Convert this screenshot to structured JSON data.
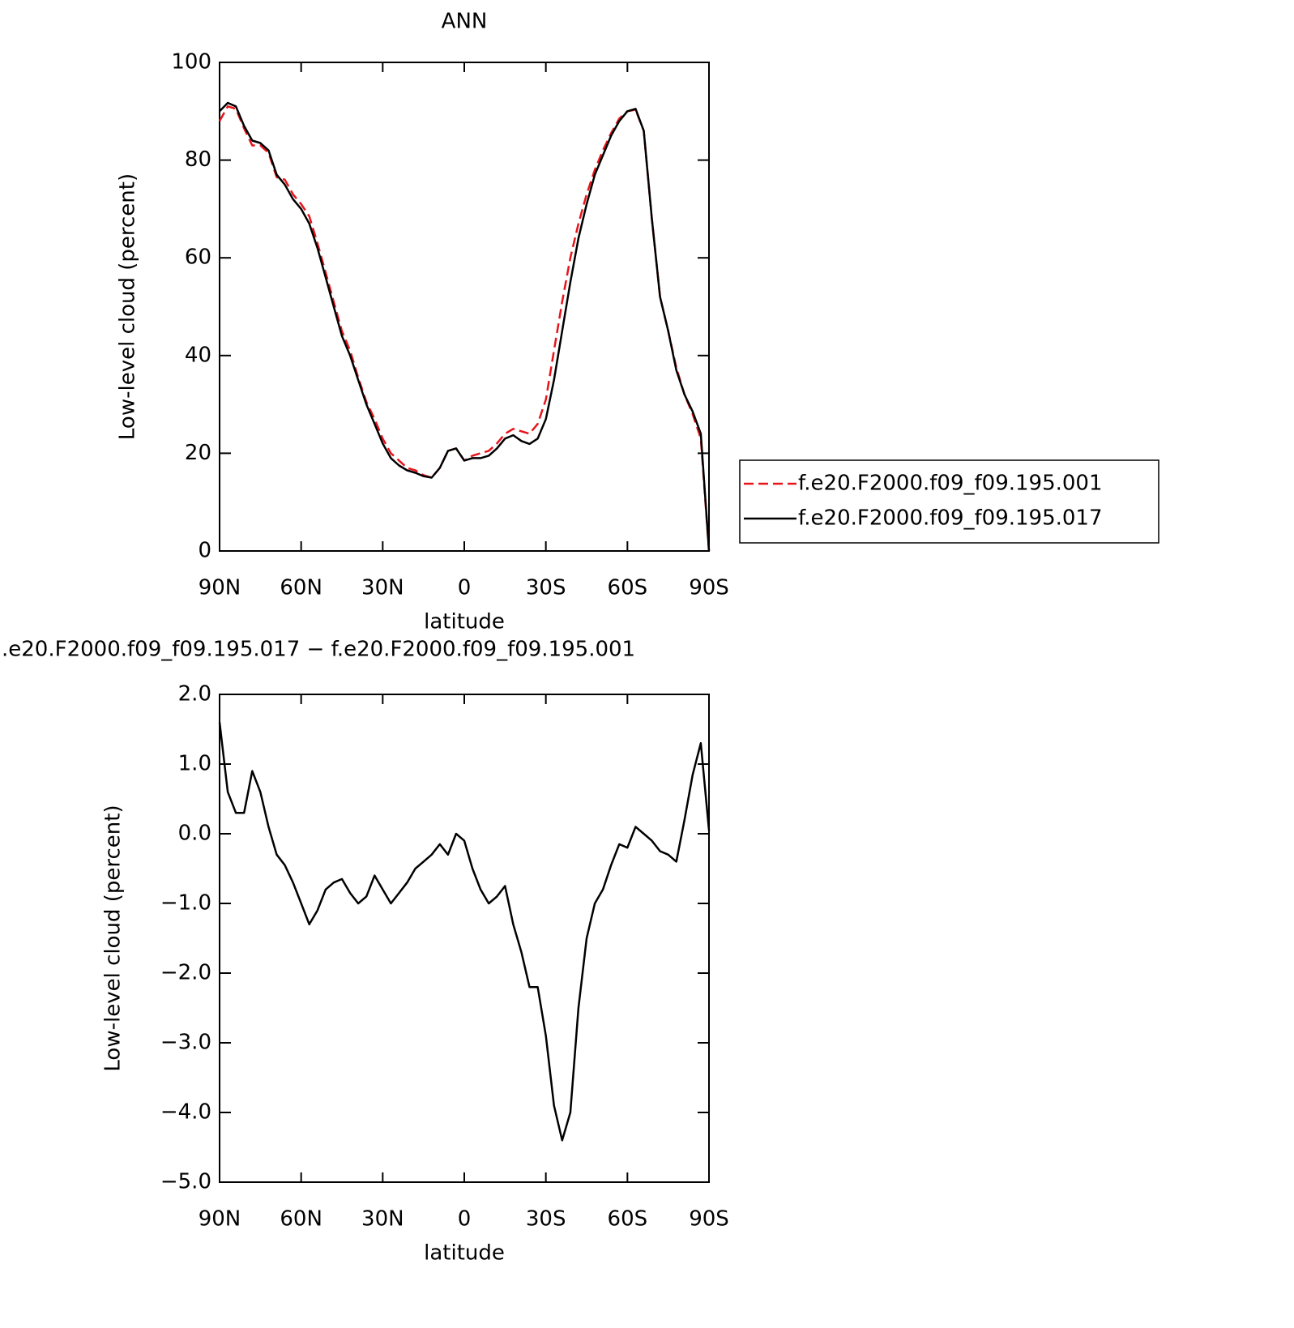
{
  "chart_data": [
    {
      "type": "line",
      "title": "ANN",
      "xlabel": "latitude",
      "ylabel": "Low-level cloud (percent)",
      "x": [
        90,
        87,
        84,
        81,
        78,
        75,
        72,
        69,
        66,
        63,
        60,
        57,
        54,
        51,
        48,
        45,
        42,
        39,
        36,
        33,
        30,
        27,
        24,
        21,
        18,
        15,
        12,
        9,
        6,
        3,
        0,
        -3,
        -6,
        -9,
        -12,
        -15,
        -18,
        -21,
        -24,
        -27,
        -30,
        -33,
        -36,
        -39,
        -42,
        -45,
        -48,
        -51,
        -54,
        -57,
        -60,
        -63,
        -66,
        -69,
        -72,
        -75,
        -78,
        -81,
        -84,
        -87,
        -90
      ],
      "series": [
        {
          "name": "f.e20.F2000.f09_f09.195.001",
          "color": "#e8141c",
          "linestyle": "dashed",
          "values": [
            88,
            91,
            90.5,
            86.5,
            83,
            83,
            81.5,
            76.5,
            76,
            73,
            71,
            68.5,
            63,
            57,
            51,
            45,
            41,
            35.5,
            30.5,
            27,
            23,
            20,
            18.5,
            17,
            16.5,
            15.5,
            15,
            17,
            20.5,
            21,
            18.5,
            19.5,
            20,
            20.5,
            22,
            24,
            25,
            24.5,
            24,
            26,
            31,
            41,
            51,
            60,
            67,
            73,
            78,
            82,
            85.5,
            88.5,
            90,
            90.3,
            86,
            68,
            52,
            45,
            37.5,
            32,
            28,
            23,
            0
          ]
        },
        {
          "name": "f.e20.F2000.f09_f09.195.017",
          "color": "#000000",
          "linestyle": "solid",
          "values": [
            90,
            91.7,
            91,
            87,
            84,
            83.5,
            82,
            77,
            75,
            72,
            70,
            67,
            62,
            56,
            50,
            44,
            40,
            35,
            30,
            26,
            22,
            19,
            17.5,
            16.5,
            16,
            15.3,
            15,
            17,
            20.5,
            21,
            18.5,
            19,
            19,
            19.5,
            21,
            23,
            23.7,
            22.5,
            21.9,
            23,
            27,
            35,
            45,
            55,
            64,
            71,
            77,
            81,
            85,
            88,
            90,
            90.5,
            86,
            68,
            52,
            45,
            37,
            32,
            28.5,
            24,
            0
          ]
        }
      ],
      "xlim": [
        90,
        -90
      ],
      "xticks": [
        {
          "value": 90,
          "label": "90N"
        },
        {
          "value": 60,
          "label": "60N"
        },
        {
          "value": 30,
          "label": "30N"
        },
        0,
        {
          "value": -30,
          "label": "30S"
        },
        {
          "value": -60,
          "label": "60S"
        },
        {
          "value": -90,
          "label": "90S"
        }
      ],
      "ylim": [
        0,
        100
      ],
      "yticks": [
        0,
        20,
        40,
        60,
        80,
        100
      ],
      "legend": "right"
    },
    {
      "type": "line",
      "title": ".e20.F2000.f09_f09.195.017 − f.e20.F2000.f09_f09.195.001",
      "xlabel": "latitude",
      "ylabel": "Low-level cloud (percent)",
      "x": [
        90,
        87,
        84,
        81,
        78,
        75,
        72,
        69,
        66,
        63,
        60,
        57,
        54,
        51,
        48,
        45,
        42,
        39,
        36,
        33,
        30,
        27,
        24,
        21,
        18,
        15,
        12,
        9,
        6,
        3,
        0,
        -3,
        -6,
        -9,
        -12,
        -15,
        -18,
        -21,
        -24,
        -27,
        -30,
        -33,
        -36,
        -39,
        -42,
        -45,
        -48,
        -51,
        -54,
        -57,
        -60,
        -63,
        -66,
        -69,
        -72,
        -75,
        -78,
        -81,
        -84,
        -87,
        -90
      ],
      "series": [
        {
          "color": "#000000",
          "linestyle": "solid",
          "values": [
            1.6,
            0.6,
            0.3,
            0.3,
            0.9,
            0.6,
            0.1,
            -0.3,
            -0.45,
            -0.7,
            -1.0,
            -1.3,
            -1.1,
            -0.8,
            -0.7,
            -0.65,
            -0.85,
            -1.0,
            -0.9,
            -0.6,
            -0.8,
            -1.0,
            -0.85,
            -0.7,
            -0.5,
            -0.4,
            -0.3,
            -0.15,
            -0.3,
            0.0,
            -0.1,
            -0.5,
            -0.8,
            -1.0,
            -0.9,
            -0.75,
            -1.3,
            -1.7,
            -2.2,
            -2.2,
            -2.9,
            -3.9,
            -4.4,
            -4.0,
            -2.5,
            -1.5,
            -1.0,
            -0.8,
            -0.45,
            -0.15,
            -0.2,
            0.1,
            0.0,
            -0.1,
            -0.25,
            -0.3,
            -0.4,
            0.2,
            0.85,
            1.3,
            0.05
          ]
        }
      ],
      "xlim": [
        90,
        -90
      ],
      "xticks": [
        {
          "value": 90,
          "label": "90N"
        },
        {
          "value": 60,
          "label": "60N"
        },
        {
          "value": 30,
          "label": "30N"
        },
        0,
        {
          "value": -30,
          "label": "30S"
        },
        {
          "value": -60,
          "label": "60S"
        },
        {
          "value": -90,
          "label": "90S"
        }
      ],
      "ylim": [
        -5,
        2
      ],
      "yticks": [
        {
          "value": 2,
          "label": "2.0"
        },
        {
          "value": 1,
          "label": "1.0"
        },
        {
          "value": 0,
          "label": "0.0"
        },
        {
          "value": -1,
          "label": "−1.0"
        },
        {
          "value": -2,
          "label": "−2.0"
        },
        {
          "value": -3,
          "label": "−3.0"
        },
        {
          "value": -4,
          "label": "−4.0"
        },
        {
          "value": -5,
          "label": "−5.0"
        }
      ]
    }
  ]
}
